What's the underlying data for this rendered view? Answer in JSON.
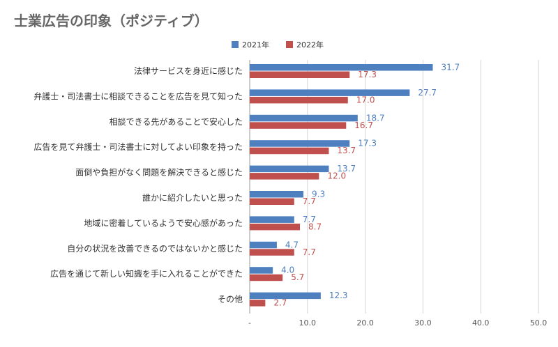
{
  "title": "士業広告の印象（ポジティブ）",
  "chart_data": {
    "type": "bar",
    "orientation": "horizontal",
    "title": "士業広告の印象（ポジティブ）",
    "categories": [
      "法律サービスを身近に感じた",
      "弁護士・司法書士に相談できることを広告を見て知った",
      "相談できる先があることで安心した",
      "広告を見て弁護士・司法書士に対してよい印象を持った",
      "面倒や負担がなく問題を解決できると感じた",
      "誰かに紹介したいと思った",
      "地域に密着しているようで安心感があった",
      "自分の状況を改善できるのではないかと感じた",
      "広告を通じて新しい知識を手に入れることができた",
      "その他"
    ],
    "series": [
      {
        "name": "2021年",
        "color": "#4e7fbf",
        "values": [
          31.7,
          27.7,
          18.7,
          17.3,
          13.7,
          9.3,
          7.7,
          4.7,
          4.0,
          12.3
        ],
        "labels": [
          "31.7",
          "27.7",
          "18.7",
          "17.3",
          "13.7",
          "9.3",
          "7.7",
          "4.7",
          "4.0",
          "12.3"
        ]
      },
      {
        "name": "2022年",
        "color": "#c0504d",
        "values": [
          17.3,
          17.0,
          16.7,
          13.7,
          12.0,
          7.7,
          8.7,
          7.7,
          5.7,
          2.7
        ],
        "labels": [
          "17.3",
          "17.0",
          "16.7",
          "13.7",
          "12.0",
          "7.7",
          "8.7",
          "7.7",
          "5.7",
          "2.7"
        ]
      }
    ],
    "xlim": [
      0,
      50
    ],
    "xticks": [
      "-",
      "10.0",
      "20.0",
      "30.0",
      "40.0",
      "50.0"
    ],
    "legend": "top",
    "grid": true
  }
}
